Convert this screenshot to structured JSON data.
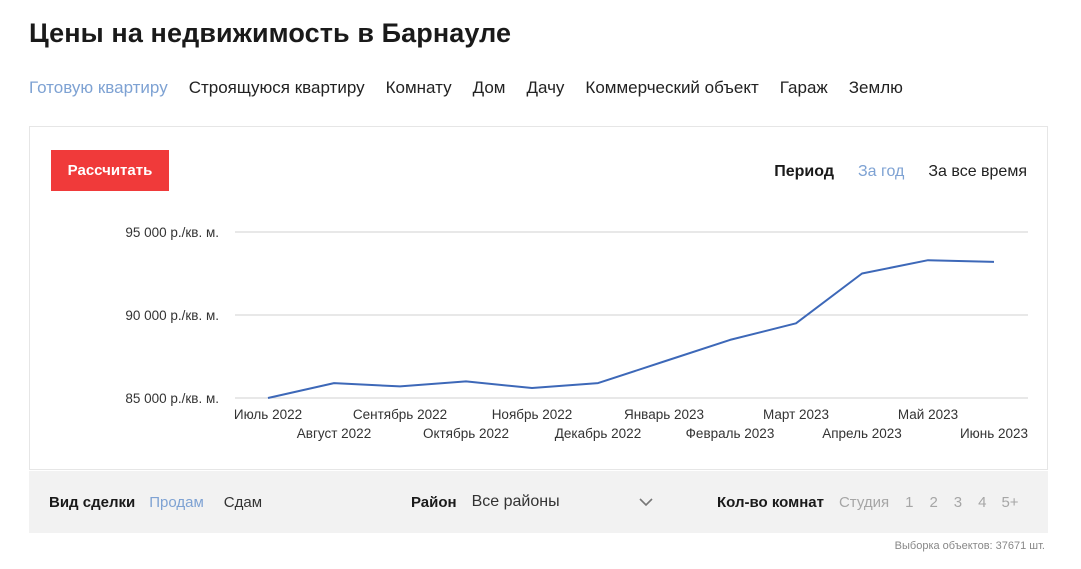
{
  "page": {
    "title": "Цены на недвижимость в Барнауле"
  },
  "property_types": [
    {
      "label": "Готовую квартиру",
      "active": true
    },
    {
      "label": "Строящуюся квартиру",
      "active": false
    },
    {
      "label": "Комнату",
      "active": false
    },
    {
      "label": "Дом",
      "active": false
    },
    {
      "label": "Дачу",
      "active": false
    },
    {
      "label": "Коммерческий объект",
      "active": false
    },
    {
      "label": "Гараж",
      "active": false
    },
    {
      "label": "Землю",
      "active": false
    }
  ],
  "card": {
    "calc_label": "Рассчитать",
    "period": {
      "label": "Период",
      "options": [
        "За год",
        "За все время"
      ],
      "active": "За год"
    }
  },
  "filters": {
    "deal": {
      "label": "Вид сделки",
      "options": [
        "Продам",
        "Сдам"
      ],
      "active": "Продам"
    },
    "district": {
      "label": "Район",
      "value": "Все районы"
    },
    "rooms": {
      "label": "Кол-во комнат",
      "options": [
        "Студия",
        "1",
        "2",
        "3",
        "4",
        "5+"
      ]
    }
  },
  "footnote": "Выборка объектов: 37671 шт.",
  "colors": {
    "accent": "#7ea2d3",
    "button": "#f03a3a",
    "line": "#3d68b8",
    "filter_bg": "#f2f2f2"
  },
  "chart_data": {
    "type": "line",
    "categories": [
      "Июль 2022",
      "Август 2022",
      "Сентябрь 2022",
      "Октябрь 2022",
      "Ноябрь 2022",
      "Декабрь 2022",
      "Январь 2023",
      "Февраль 2023",
      "Март 2023",
      "Апрель 2023",
      "Май 2023",
      "Июнь 2023"
    ],
    "series": [
      {
        "values": [
          85000,
          85900,
          85700,
          86000,
          85600,
          85900,
          87200,
          88500,
          89500,
          92500,
          93300,
          93200
        ]
      }
    ],
    "y_ticks": [
      85000,
      90000,
      95000
    ],
    "y_tick_labels": [
      "85 000 р./кв. м.",
      "90 000 р./кв. м.",
      "95 000 р./кв. м."
    ],
    "ylim": [
      85000,
      95000
    ],
    "grid": true,
    "title": "",
    "xlabel": "",
    "ylabel": ""
  }
}
